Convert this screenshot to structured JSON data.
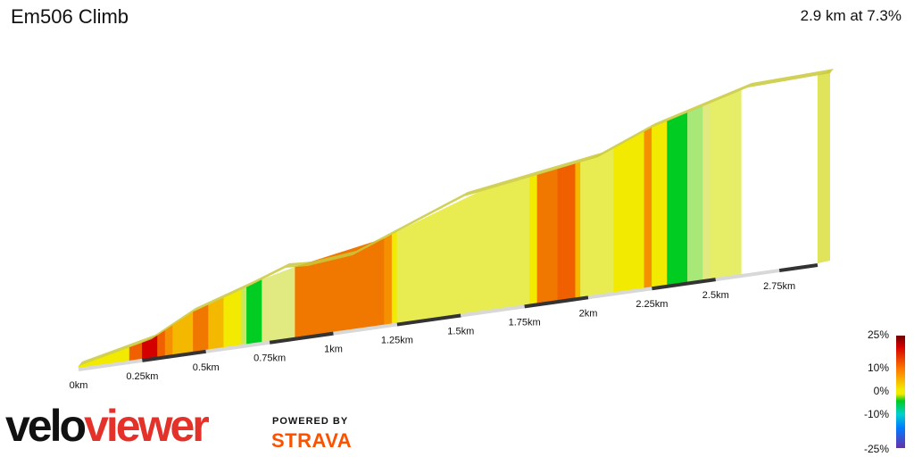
{
  "title": "Em506 Climb",
  "summary": "2.9 km at 7.3%",
  "brand": {
    "velo": "velo",
    "viewer": "viewer",
    "powered": "POWERED BY",
    "strava": "STRAVA"
  },
  "legend": {
    "labels": [
      "25%",
      "10%",
      "0%",
      "-10%",
      "-25%"
    ]
  },
  "chart_data": {
    "type": "area",
    "title": "Em506 Climb",
    "xlabel": "",
    "ylabel": "",
    "x_ticks": [
      "0km",
      "0.25km",
      "0.5km",
      "0.75km",
      "1km",
      "1.25km",
      "1.5km",
      "1.75km",
      "2km",
      "2.25km",
      "2.5km",
      "2.75km"
    ],
    "tick_values_km": [
      0,
      0.25,
      0.5,
      0.75,
      1.0,
      1.25,
      1.5,
      1.75,
      2.0,
      2.25,
      2.5,
      2.75
    ],
    "xlim_km": [
      0,
      2.9
    ],
    "segments": [
      {
        "start_km": 0.0,
        "end_km": 0.2,
        "color": "#f2ea00"
      },
      {
        "start_km": 0.2,
        "end_km": 0.25,
        "color": "#f06000"
      },
      {
        "start_km": 0.25,
        "end_km": 0.31,
        "color": "#d40000"
      },
      {
        "start_km": 0.31,
        "end_km": 0.34,
        "color": "#f06000"
      },
      {
        "start_km": 0.34,
        "end_km": 0.37,
        "color": "#f59000"
      },
      {
        "start_km": 0.37,
        "end_km": 0.45,
        "color": "#f5b800"
      },
      {
        "start_km": 0.45,
        "end_km": 0.51,
        "color": "#f07800"
      },
      {
        "start_km": 0.51,
        "end_km": 0.57,
        "color": "#f5b800"
      },
      {
        "start_km": 0.57,
        "end_km": 0.64,
        "color": "#f2ea00"
      },
      {
        "start_km": 0.64,
        "end_km": 0.66,
        "color": "#c8e860"
      },
      {
        "start_km": 0.66,
        "end_km": 0.72,
        "color": "#00cc22"
      },
      {
        "start_km": 0.72,
        "end_km": 0.85,
        "color": "#e0ea80"
      },
      {
        "start_km": 0.85,
        "end_km": 1.2,
        "color": "#f07800"
      },
      {
        "start_km": 1.2,
        "end_km": 1.23,
        "color": "#f59000"
      },
      {
        "start_km": 1.23,
        "end_km": 1.25,
        "color": "#f2ea00"
      },
      {
        "start_km": 1.25,
        "end_km": 1.57,
        "color": "#e8ec50"
      },
      {
        "start_km": 1.57,
        "end_km": 1.77,
        "color": "#e8ec50"
      },
      {
        "start_km": 1.77,
        "end_km": 1.8,
        "color": "#f2ea00"
      },
      {
        "start_km": 1.8,
        "end_km": 1.88,
        "color": "#f07800"
      },
      {
        "start_km": 1.88,
        "end_km": 1.95,
        "color": "#f06000"
      },
      {
        "start_km": 1.95,
        "end_km": 1.97,
        "color": "#f5b800"
      },
      {
        "start_km": 1.97,
        "end_km": 2.1,
        "color": "#e8ec50"
      },
      {
        "start_km": 2.1,
        "end_km": 2.22,
        "color": "#f2ea00"
      },
      {
        "start_km": 2.22,
        "end_km": 2.25,
        "color": "#f59000"
      },
      {
        "start_km": 2.25,
        "end_km": 2.31,
        "color": "#f2ea00"
      },
      {
        "start_km": 2.31,
        "end_km": 2.39,
        "color": "#00cc22"
      },
      {
        "start_km": 2.39,
        "end_km": 2.45,
        "color": "#a8e878"
      },
      {
        "start_km": 2.45,
        "end_km": 2.48,
        "color": "#e0ea80"
      },
      {
        "start_km": 2.48,
        "end_km": 2.6,
        "color": "#e6ee68"
      }
    ],
    "legend_scale": [
      "25%",
      "10%",
      "0%",
      "-10%",
      "-25%"
    ]
  }
}
